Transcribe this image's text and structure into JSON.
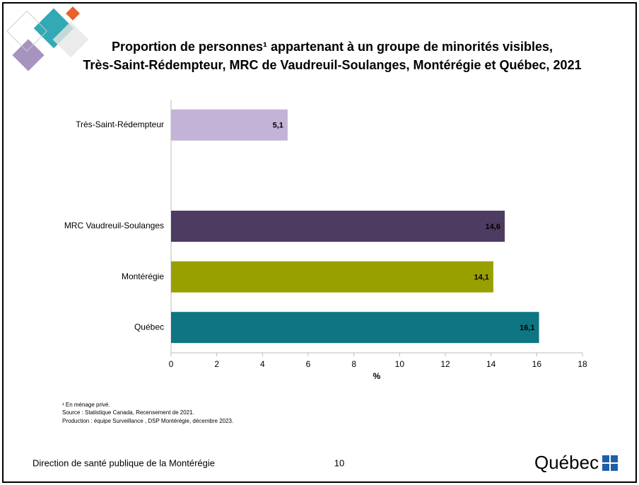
{
  "chart_data": {
    "type": "hbar",
    "title": [
      "Proportion de personnes¹ appartenant à un groupe de minorités visibles,",
      "Très-Saint-Rédempteur, MRC de Vaudreuil-Soulanges, Montérégie et Québec, 2021"
    ],
    "categories": [
      "Très-Saint-Rédempteur",
      null,
      "MRC Vaudreuil-Soulanges",
      "Montérégie",
      "Québec"
    ],
    "values": [
      5.1,
      null,
      14.6,
      14.1,
      16.1
    ],
    "value_labels": [
      "5,1",
      null,
      "14,6",
      "14,1",
      "16,1"
    ],
    "colors": [
      "#c3b3d6",
      null,
      "#4e3b62",
      "#98a000",
      "#0e7582"
    ],
    "xlim": [
      0,
      18
    ],
    "xticks": [
      0,
      2,
      4,
      6,
      8,
      10,
      12,
      14,
      16,
      18
    ],
    "xlabel": "%"
  },
  "notes": [
    "¹ En ménage privé.",
    "Source : Statistique Canada, Recensement de 2021.",
    "Production : équipe Surveillance , DSP Montérégie, décembre 2023."
  ],
  "footer": {
    "left": "Direction de santé publique de la Montérégie",
    "page": "10",
    "logo": "Québec"
  }
}
